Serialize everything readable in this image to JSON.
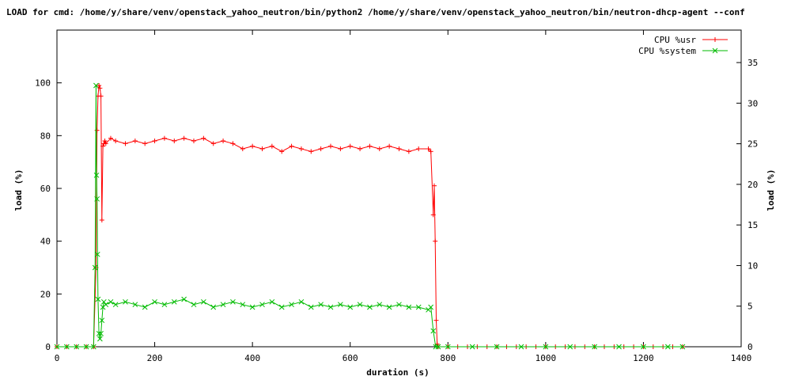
{
  "chart_data": {
    "type": "line",
    "title": "LOAD for cmd: /home/y/share/venv/openstack_yahoo_neutron/bin/python2 /home/y/share/venv/openstack_yahoo_neutron/bin/neutron-dhcp-agent --conf",
    "xlabel": "duration (s)",
    "ylabel": "load (%)",
    "y2label": "load (%)",
    "xlim": [
      0,
      1400
    ],
    "ylim": [
      0,
      120
    ],
    "y2lim": [
      0,
      39
    ],
    "xticks": [
      0,
      200,
      400,
      600,
      800,
      1000,
      1200,
      1400
    ],
    "yticks": [
      0,
      20,
      40,
      60,
      80,
      100
    ],
    "y2ticks": [
      0,
      5,
      10,
      15,
      20,
      25,
      30,
      35
    ],
    "legend_position": "top-right",
    "grid": false,
    "series": [
      {
        "name": "CPU %usr",
        "color": "#ff0000",
        "marker": "plus",
        "x": [
          0,
          20,
          40,
          60,
          75,
          80,
          82,
          84,
          86,
          88,
          90,
          92,
          94,
          96,
          98,
          100,
          110,
          120,
          140,
          160,
          180,
          200,
          220,
          240,
          260,
          280,
          300,
          320,
          340,
          360,
          380,
          400,
          420,
          440,
          460,
          480,
          500,
          520,
          540,
          560,
          580,
          600,
          620,
          640,
          660,
          680,
          700,
          720,
          740,
          760,
          765,
          770,
          772,
          774,
          776,
          778,
          780,
          800,
          820,
          840,
          860,
          880,
          900,
          920,
          940,
          960,
          980,
          1000,
          1020,
          1040,
          1060,
          1080,
          1100,
          1120,
          1140,
          1160,
          1180,
          1200,
          1220,
          1240,
          1260,
          1280
        ],
        "y": [
          0,
          0,
          0,
          0,
          0,
          30,
          82,
          95,
          99,
          98,
          95,
          48,
          76,
          77,
          78,
          77,
          79,
          78,
          77,
          78,
          77,
          78,
          79,
          78,
          79,
          78,
          79,
          77,
          78,
          77,
          75,
          76,
          75,
          76,
          74,
          76,
          75,
          74,
          75,
          76,
          75,
          76,
          75,
          76,
          75,
          76,
          75,
          74,
          75,
          75,
          74,
          50,
          61,
          40,
          10,
          1,
          0,
          0,
          0,
          0,
          0,
          0,
          0,
          0,
          0,
          0,
          0,
          0,
          0,
          0,
          0,
          0,
          0,
          0,
          0,
          0,
          0,
          0,
          0,
          0,
          0,
          0
        ]
      },
      {
        "name": "CPU %system",
        "color": "#00bb00",
        "marker": "cross",
        "x": [
          0,
          20,
          40,
          60,
          75,
          78,
          80,
          81,
          82,
          83,
          84,
          86,
          88,
          90,
          92,
          94,
          96,
          100,
          110,
          120,
          140,
          160,
          180,
          200,
          220,
          240,
          260,
          280,
          300,
          320,
          340,
          360,
          380,
          400,
          420,
          440,
          460,
          480,
          500,
          520,
          540,
          560,
          580,
          600,
          620,
          640,
          660,
          680,
          700,
          720,
          740,
          760,
          765,
          770,
          775,
          780,
          800,
          850,
          900,
          950,
          1000,
          1050,
          1100,
          1150,
          1200,
          1250,
          1280
        ],
        "y": [
          0,
          0,
          0,
          0,
          0,
          30,
          99,
          65,
          56,
          35,
          18,
          5,
          3,
          5,
          10,
          15,
          17,
          16,
          17,
          16,
          17,
          16,
          15,
          17,
          16,
          17,
          18,
          16,
          17,
          15,
          16,
          17,
          16,
          15,
          16,
          17,
          15,
          16,
          17,
          15,
          16,
          15,
          16,
          15,
          16,
          15,
          16,
          15,
          16,
          15,
          15,
          14,
          15,
          6,
          0,
          0,
          0,
          0,
          0,
          0,
          0,
          0,
          0,
          0,
          0,
          0,
          0
        ]
      }
    ]
  }
}
